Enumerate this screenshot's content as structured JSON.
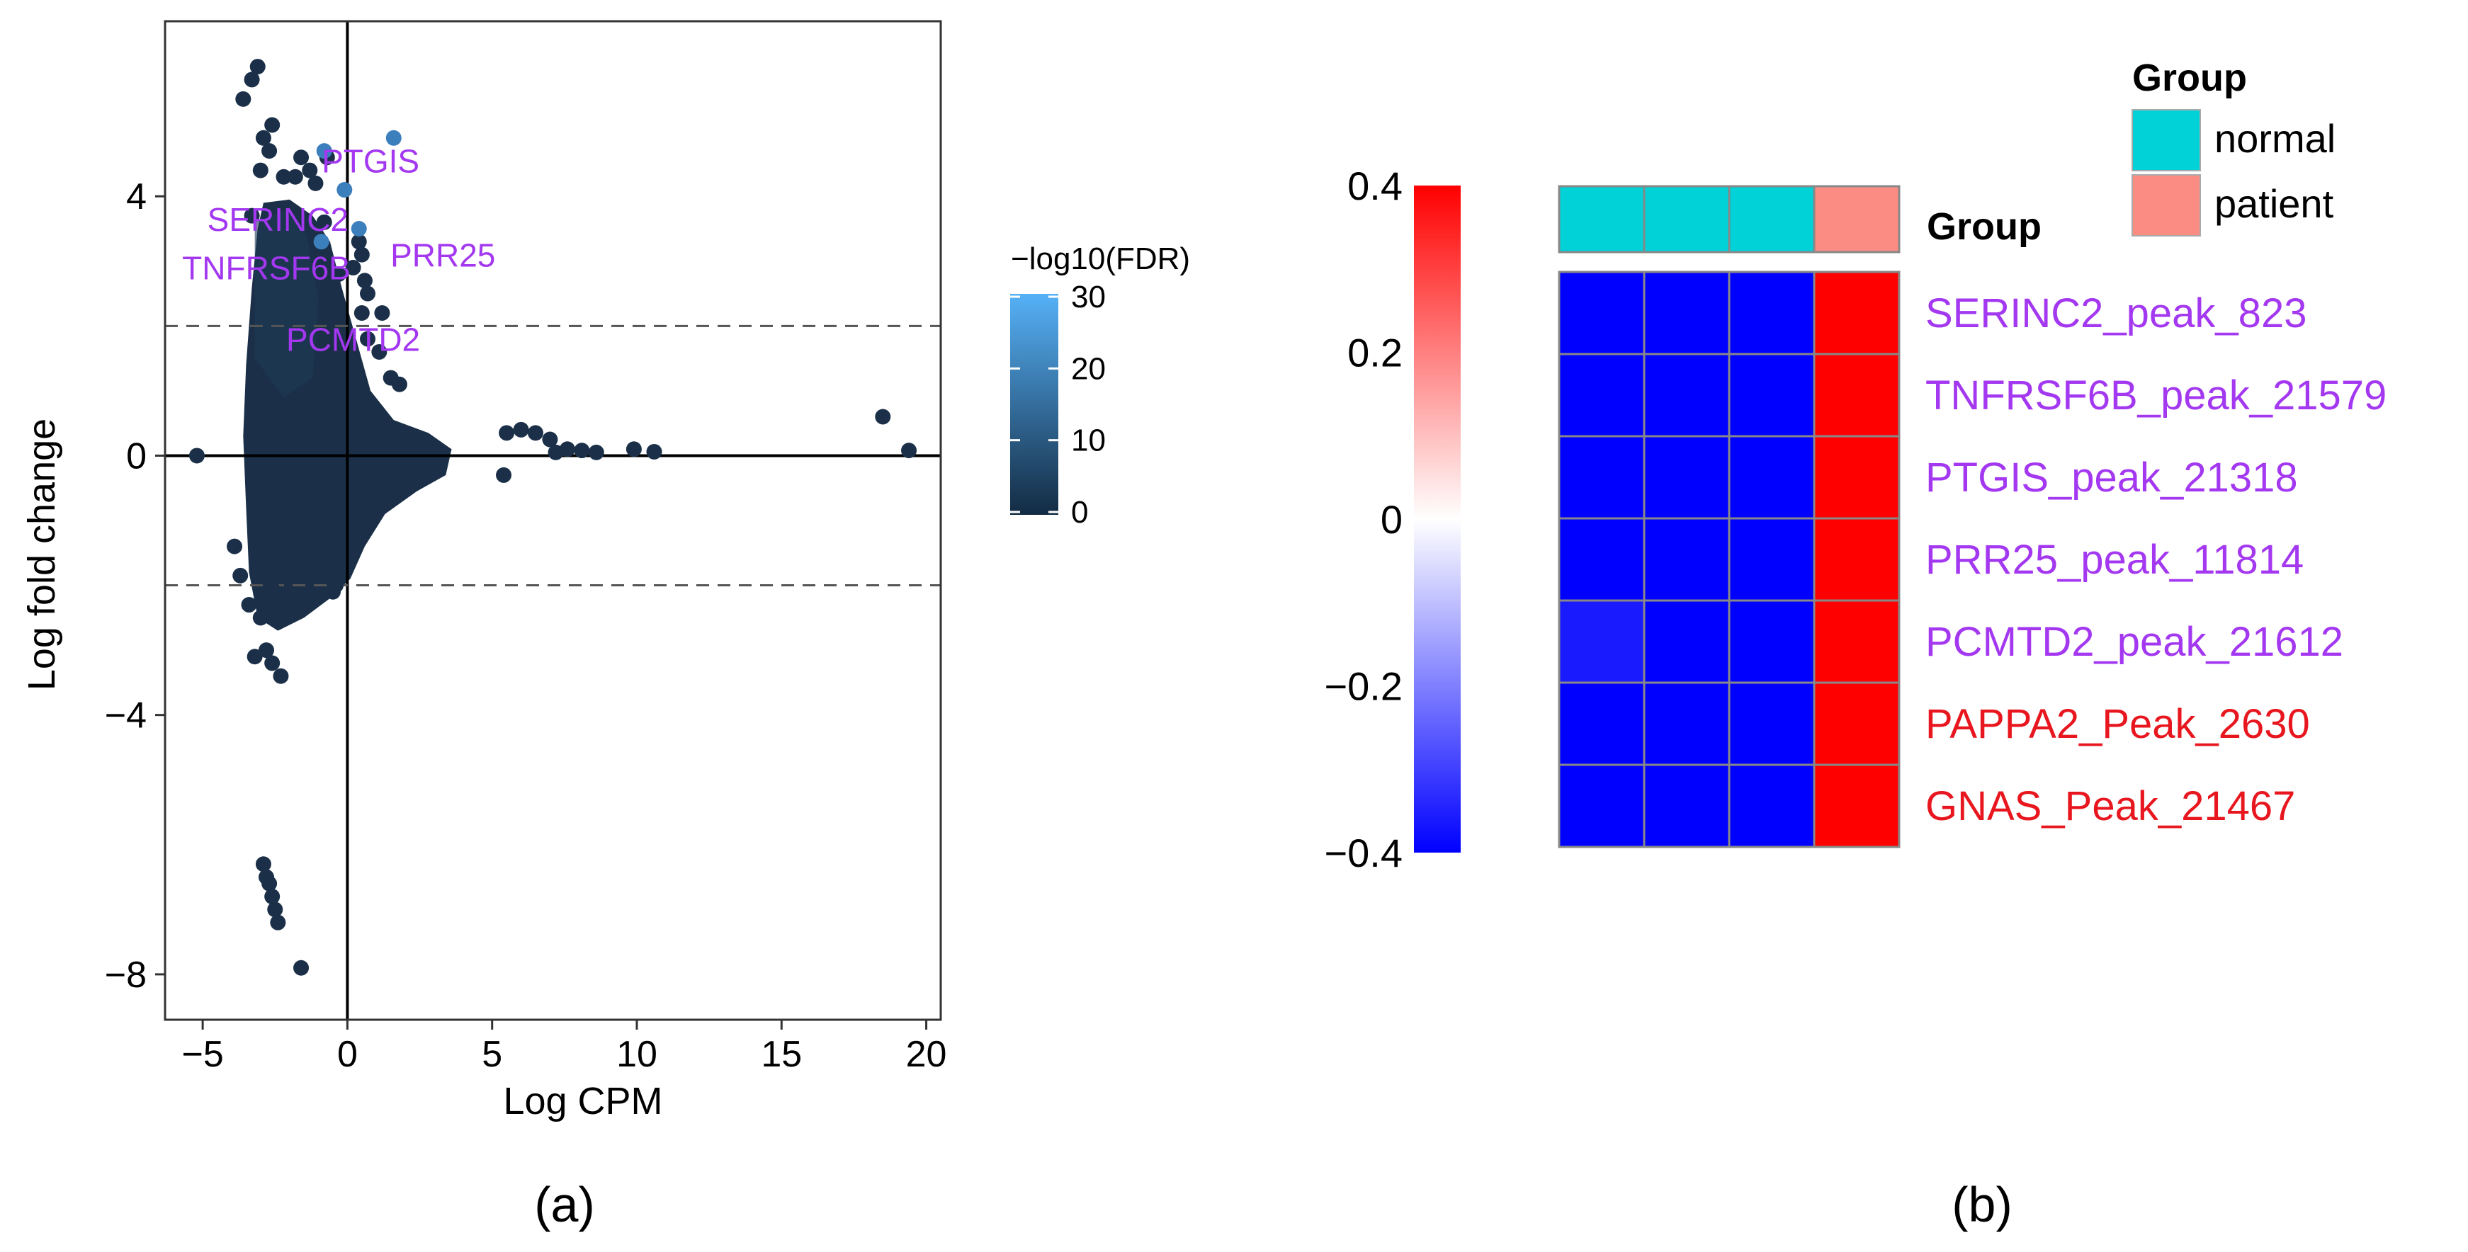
{
  "chart_data": [
    {
      "panel_label": "(a)",
      "type": "scatter",
      "title": "",
      "xlabel": "Log CPM",
      "ylabel": "Log fold change",
      "xlim": [
        -6.3,
        20.5
      ],
      "ylim": [
        -8.7,
        6.7
      ],
      "x_ticks": [
        -5,
        0,
        5,
        10,
        15,
        20
      ],
      "y_ticks": [
        -8,
        -4,
        0,
        4
      ],
      "grid": false,
      "reference_lines": {
        "vertical_x": 0,
        "horizontal_y": 0,
        "dashed_thresholds_y": [
          2,
          -2
        ]
      },
      "colorbar": {
        "title": "−log10(FDR)",
        "min": 0,
        "max": 30,
        "ticks": [
          0,
          10,
          20,
          30
        ],
        "low_color": "#132b43",
        "high_color": "#56b1f7"
      },
      "point_color": "#1b3048",
      "series": [
        {
          "name": "high_fold_points",
          "points": [
            [
              -3.1,
              6.0
            ],
            [
              -3.3,
              5.8
            ],
            [
              -3.6,
              5.5
            ],
            [
              -2.6,
              5.1
            ],
            [
              -2.9,
              4.9
            ],
            [
              -2.7,
              4.7
            ],
            [
              -1.6,
              4.6
            ],
            [
              -1.3,
              4.4
            ],
            [
              -0.7,
              4.6
            ],
            [
              -2.2,
              4.3
            ],
            [
              -1.8,
              4.3
            ],
            [
              -1.1,
              4.2
            ],
            [
              -3.0,
              4.4
            ],
            [
              -3.3,
              3.7
            ],
            [
              -0.8,
              3.6
            ],
            [
              0.4,
              3.3
            ],
            [
              0.2,
              2.9
            ],
            [
              0.5,
              3.1
            ],
            [
              -0.3,
              2.8
            ],
            [
              0.6,
              2.7
            ],
            [
              0.7,
              2.5
            ],
            [
              0.5,
              2.2
            ],
            [
              0.7,
              1.8
            ],
            [
              1.2,
              2.2
            ],
            [
              1.1,
              1.6
            ],
            [
              1.5,
              1.2
            ],
            [
              1.8,
              1.1
            ]
          ]
        },
        {
          "name": "high_significance_points",
          "points": [
            [
              -0.8,
              4.7
            ],
            [
              -0.1,
              4.1
            ],
            [
              1.6,
              4.9
            ],
            [
              0.4,
              3.5
            ],
            [
              -0.9,
              3.3
            ]
          ]
        },
        {
          "name": "high_cpm_points",
          "points": [
            [
              5.5,
              0.35
            ],
            [
              6.0,
              0.4
            ],
            [
              6.5,
              0.35
            ],
            [
              7.0,
              0.25
            ],
            [
              7.2,
              0.05
            ],
            [
              7.6,
              0.1
            ],
            [
              8.1,
              0.08
            ],
            [
              8.6,
              0.05
            ],
            [
              9.9,
              0.1
            ],
            [
              10.6,
              0.06
            ],
            [
              18.5,
              0.6
            ],
            [
              19.4,
              0.08
            ],
            [
              5.4,
              -0.3
            ],
            [
              -5.2,
              0.0
            ],
            [
              -3.9,
              -1.4
            ],
            [
              -3.7,
              -1.85
            ],
            [
              -2.6,
              -2.05
            ],
            [
              -0.4,
              -2.0
            ],
            [
              -3.4,
              -2.3
            ],
            [
              -3.0,
              -2.5
            ],
            [
              -2.4,
              -2.55
            ],
            [
              -2.8,
              -3.0
            ],
            [
              -3.2,
              -3.1
            ],
            [
              -2.6,
              -3.2
            ],
            [
              -2.3,
              -3.4
            ],
            [
              -0.5,
              -2.1
            ]
          ]
        },
        {
          "name": "low_fold_points",
          "points": [
            [
              -2.9,
              -6.3
            ],
            [
              -2.8,
              -6.5
            ],
            [
              -2.7,
              -6.6
            ],
            [
              -2.6,
              -6.8
            ],
            [
              -2.5,
              -7.0
            ],
            [
              -2.4,
              -7.2
            ],
            [
              -1.6,
              -7.9
            ]
          ]
        }
      ],
      "annotations": [
        {
          "text": "PTGIS",
          "x": 0.8,
          "y": 4.5
        },
        {
          "text": "SERINC2",
          "x": -2.4,
          "y": 3.6
        },
        {
          "text": "PRR25",
          "x": 3.3,
          "y": 3.05
        },
        {
          "text": "TNFRSF6B",
          "x": -2.8,
          "y": 2.85
        },
        {
          "text": "PCMTD2",
          "x": 0.2,
          "y": 1.75
        }
      ],
      "annotation_color": "#a338f0"
    },
    {
      "panel_label": "(b)",
      "type": "heatmap",
      "rows": [
        {
          "label": "SERINC2_peak_823",
          "label_color": "#a338f0",
          "values": [
            -0.4,
            -0.4,
            -0.4,
            0.4
          ]
        },
        {
          "label": "TNFRSF6B_peak_21579",
          "label_color": "#a338f0",
          "values": [
            -0.4,
            -0.4,
            -0.4,
            0.4
          ]
        },
        {
          "label": "PTGIS_peak_21318",
          "label_color": "#a338f0",
          "values": [
            -0.4,
            -0.4,
            -0.4,
            0.4
          ]
        },
        {
          "label": "PRR25_peak_11814",
          "label_color": "#a338f0",
          "values": [
            -0.4,
            -0.4,
            -0.4,
            0.4
          ]
        },
        {
          "label": "PCMTD2_peak_21612",
          "label_color": "#a338f0",
          "values": [
            -0.36,
            -0.4,
            -0.4,
            0.4
          ]
        },
        {
          "label": "PAPPA2_Peak_2630",
          "label_color": "#e8161e",
          "values": [
            -0.4,
            -0.4,
            -0.4,
            0.4
          ]
        },
        {
          "label": "GNAS_Peak_21467",
          "label_color": "#e8161e",
          "values": [
            -0.4,
            -0.4,
            -0.4,
            0.4
          ]
        }
      ],
      "column_groups": [
        "normal",
        "normal",
        "normal",
        "patient"
      ],
      "annotation_row_label": "Group",
      "color_scale": {
        "min": -0.4,
        "max": 0.4,
        "ticks": [
          0.4,
          0.2,
          0,
          -0.2,
          -0.4
        ],
        "tick_labels": [
          "0.4",
          "0.2",
          "0",
          "−0.2",
          "−0.4"
        ],
        "low_color": "#0000ff",
        "mid_color": "#ffffff",
        "high_color": "#ff0000"
      },
      "legend": {
        "title": "Group",
        "entries": [
          {
            "label": "normal",
            "color": "#00d2d8"
          },
          {
            "label": "patient",
            "color": "#fb8c84"
          }
        ]
      }
    }
  ]
}
